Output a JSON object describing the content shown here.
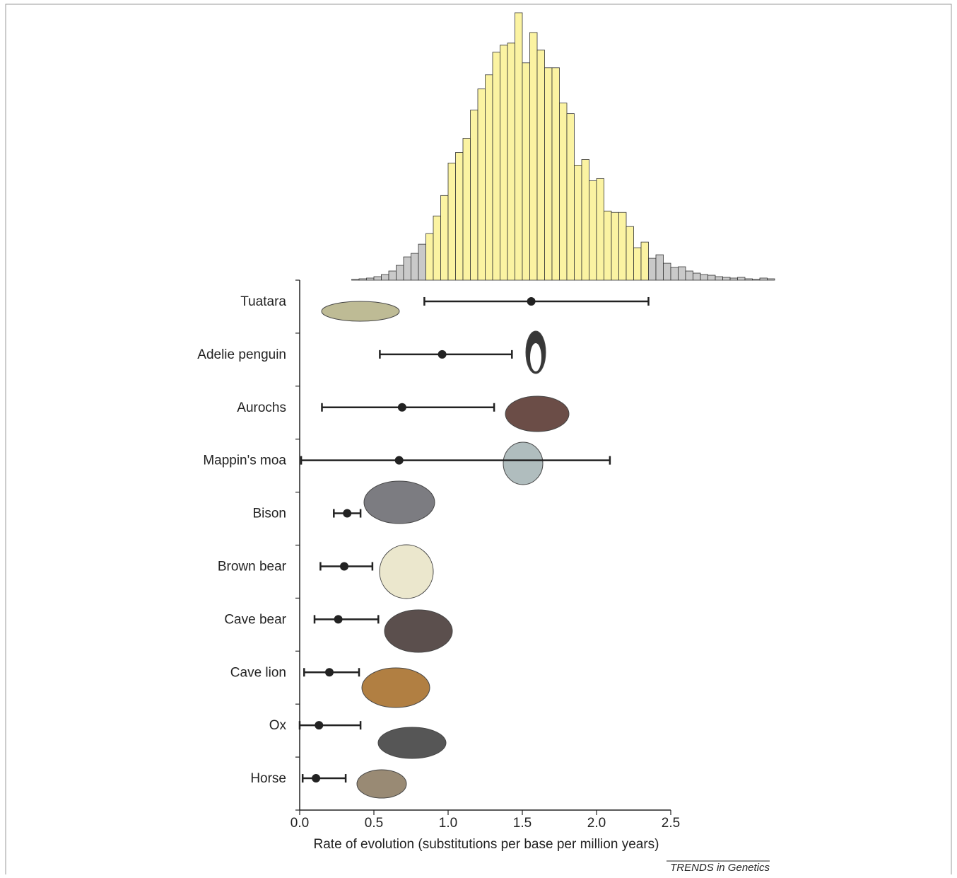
{
  "chart_data": [
    {
      "type": "histogram",
      "bins": [
        0.35,
        0.4,
        0.45,
        0.5,
        0.55,
        0.6,
        0.65,
        0.7,
        0.75,
        0.8,
        0.85,
        0.9,
        0.95,
        1.0,
        1.05,
        1.1,
        1.15,
        1.2,
        1.25,
        1.3,
        1.35,
        1.4,
        1.45,
        1.5,
        1.55,
        1.6,
        1.65,
        1.7,
        1.75,
        1.8,
        1.85,
        1.9,
        1.95,
        2.0,
        2.05,
        2.1,
        2.15,
        2.2,
        2.25,
        2.3,
        2.35,
        2.4,
        2.45,
        2.5,
        2.55,
        2.6,
        2.65,
        2.7,
        2.75,
        2.8,
        2.85,
        2.9,
        2.95,
        3.0,
        3.05,
        3.1,
        3.15,
        3.2
      ],
      "values": [
        1,
        2,
        3,
        5,
        8,
        13,
        21,
        33,
        38,
        51,
        66,
        91,
        120,
        166,
        181,
        201,
        241,
        271,
        291,
        323,
        333,
        336,
        379,
        308,
        351,
        326,
        301,
        301,
        251,
        236,
        163,
        171,
        141,
        144,
        98,
        96,
        96,
        76,
        46,
        54,
        31,
        36,
        24,
        18,
        19,
        13,
        10,
        8,
        7,
        5,
        4,
        3,
        4,
        2,
        1,
        3,
        2
      ],
      "ylim": [
        0,
        380
      ],
      "color": "#c9c9c9",
      "highlight": {
        "from": 0.85,
        "to": 2.35,
        "color": "#fbf3a2"
      }
    },
    {
      "type": "errorbar",
      "categories": [
        "Tuatara",
        "Adelie penguin",
        "Aurochs",
        "Mappin's moa",
        "Bison",
        "Brown bear",
        "Cave bear",
        "Cave lion",
        "Ox",
        "Horse"
      ],
      "values": [
        1.56,
        0.96,
        0.69,
        0.67,
        0.32,
        0.3,
        0.26,
        0.2,
        0.13,
        0.11
      ],
      "lower": [
        0.84,
        0.54,
        0.15,
        0.01,
        0.23,
        0.14,
        0.1,
        0.03,
        0.0,
        0.02
      ],
      "upper": [
        2.35,
        1.43,
        1.31,
        2.09,
        0.41,
        0.49,
        0.53,
        0.4,
        0.41,
        0.31
      ],
      "xlim": [
        0,
        2.5
      ],
      "xticks": [
        {
          "value": 0,
          "label": "0.0"
        },
        0.5,
        {
          "value": 1,
          "label": "1.0"
        },
        1.5,
        {
          "value": 2,
          "label": "2.0"
        },
        2.5
      ],
      "xlabel": "Rate of evolution (substitutions per base per million years)",
      "color": "#222222"
    }
  ],
  "source": "TRENDS in Genetics"
}
